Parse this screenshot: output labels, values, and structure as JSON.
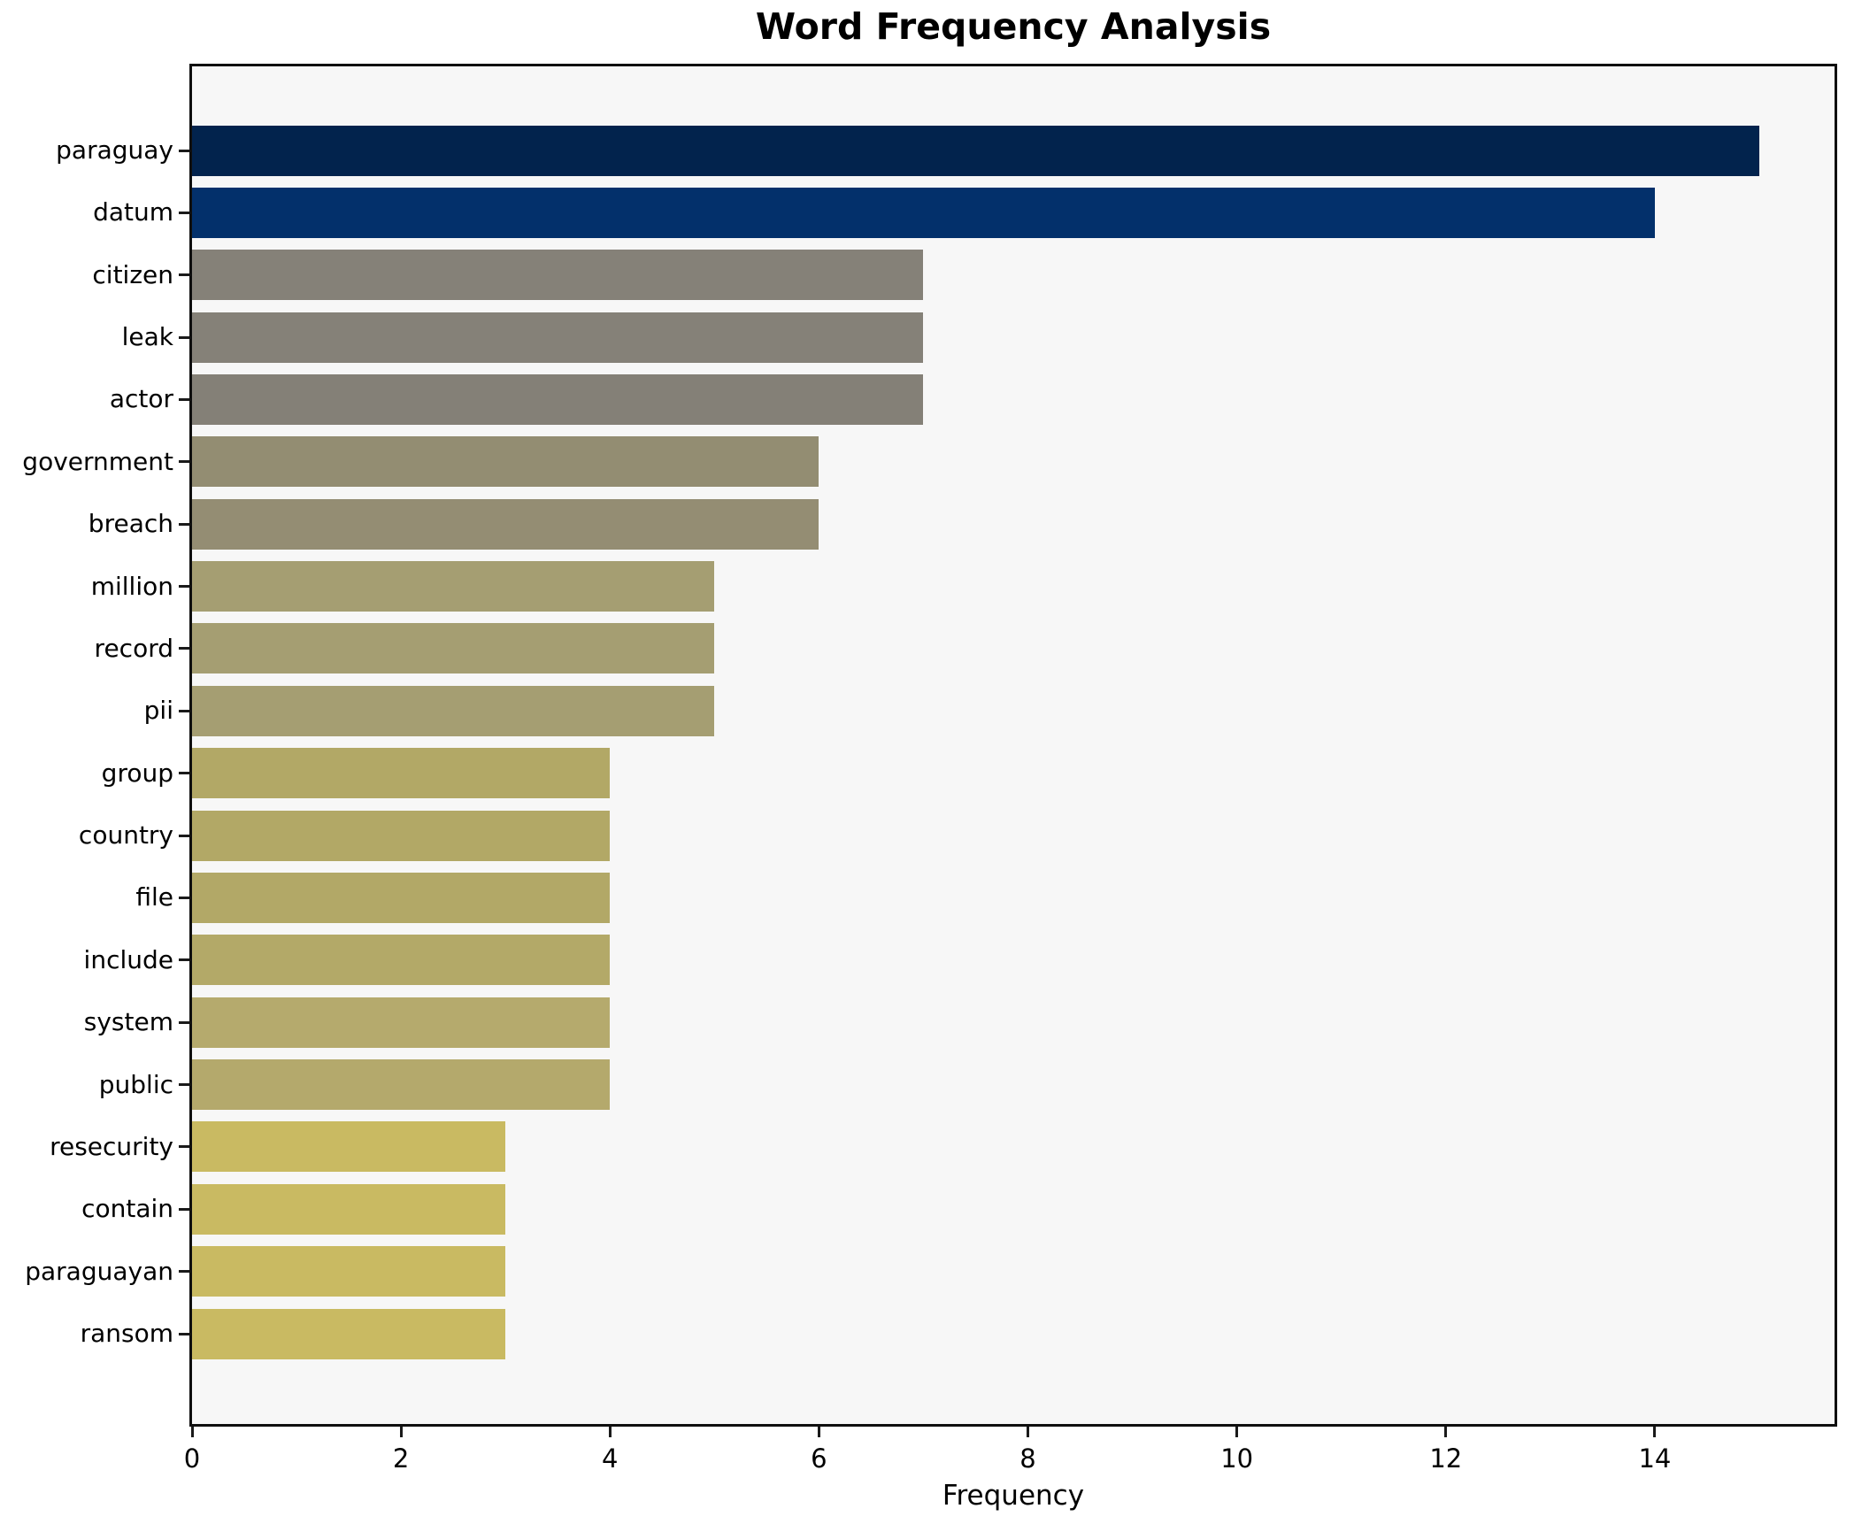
{
  "chart_data": {
    "type": "bar",
    "orientation": "horizontal",
    "title": "Word Frequency Analysis",
    "xlabel": "Frequency",
    "ylabel": "",
    "categories": [
      "paraguay",
      "datum",
      "citizen",
      "leak",
      "actor",
      "government",
      "breach",
      "million",
      "record",
      "pii",
      "group",
      "country",
      "file",
      "include",
      "system",
      "public",
      "resecurity",
      "contain",
      "paraguayan",
      "ransom"
    ],
    "values": [
      15,
      14,
      7,
      7,
      7,
      6,
      6,
      5,
      5,
      5,
      4,
      4,
      4,
      4,
      4,
      4,
      3,
      3,
      3,
      3
    ],
    "bar_colors": [
      "#02234d",
      "#03306b",
      "#858178",
      "#858178",
      "#848077",
      "#938d72",
      "#948d73",
      "#a59e72",
      "#a59e72",
      "#a59e72",
      "#b2a866",
      "#b2a866",
      "#b2a867",
      "#b3a968",
      "#b5aa6d",
      "#b4a96c",
      "#c9ba62",
      "#c9ba62",
      "#c9ba62",
      "#c9ba62"
    ],
    "xticks": [
      0,
      2,
      4,
      6,
      8,
      10,
      12,
      14
    ],
    "xlim": [
      0,
      15.72
    ],
    "grid": false,
    "legend": null,
    "plot_bg": "#f7f7f7",
    "fig_bg": "#ffffff",
    "spine_color": "#0f0f0f",
    "text_color": "#000000"
  }
}
